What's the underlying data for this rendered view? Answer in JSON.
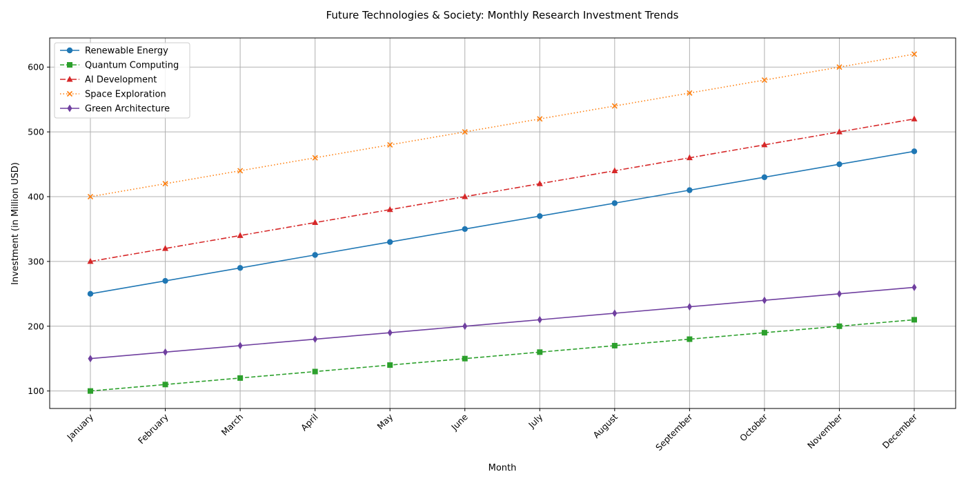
{
  "chart_data": {
    "type": "line",
    "title": "Future Technologies & Society: Monthly Research Investment Trends",
    "xlabel": "Month",
    "ylabel": "Investment (in Million USD)",
    "categories": [
      "January",
      "February",
      "March",
      "April",
      "May",
      "June",
      "July",
      "August",
      "September",
      "October",
      "November",
      "December"
    ],
    "yticks": [
      100,
      200,
      300,
      400,
      500,
      600
    ],
    "ylim": [
      73,
      645
    ],
    "grid": true,
    "legend_position": "top-left",
    "series": [
      {
        "name": "Renewable Energy",
        "color": "#1f77b4",
        "linestyle": "solid",
        "marker": "circle",
        "values": [
          250,
          270,
          290,
          310,
          330,
          350,
          370,
          390,
          410,
          430,
          450,
          470
        ]
      },
      {
        "name": "Quantum Computing",
        "color": "#2ca02c",
        "linestyle": "dashed",
        "marker": "square",
        "values": [
          100,
          110,
          120,
          130,
          140,
          150,
          160,
          170,
          180,
          190,
          200,
          210
        ]
      },
      {
        "name": "AI Development",
        "color": "#d62728",
        "linestyle": "dashdot",
        "marker": "triangle",
        "values": [
          300,
          320,
          340,
          360,
          380,
          400,
          420,
          440,
          460,
          480,
          500,
          520
        ]
      },
      {
        "name": "Space Exploration",
        "color": "#ff7f0e",
        "linestyle": "dotted",
        "marker": "x",
        "values": [
          400,
          420,
          440,
          460,
          480,
          500,
          520,
          540,
          560,
          580,
          600,
          620
        ]
      },
      {
        "name": "Green Architecture",
        "color": "#6f3f9f",
        "linestyle": "solid",
        "marker": "diamond",
        "values": [
          150,
          160,
          170,
          180,
          190,
          200,
          210,
          220,
          230,
          240,
          250,
          260
        ]
      }
    ]
  }
}
